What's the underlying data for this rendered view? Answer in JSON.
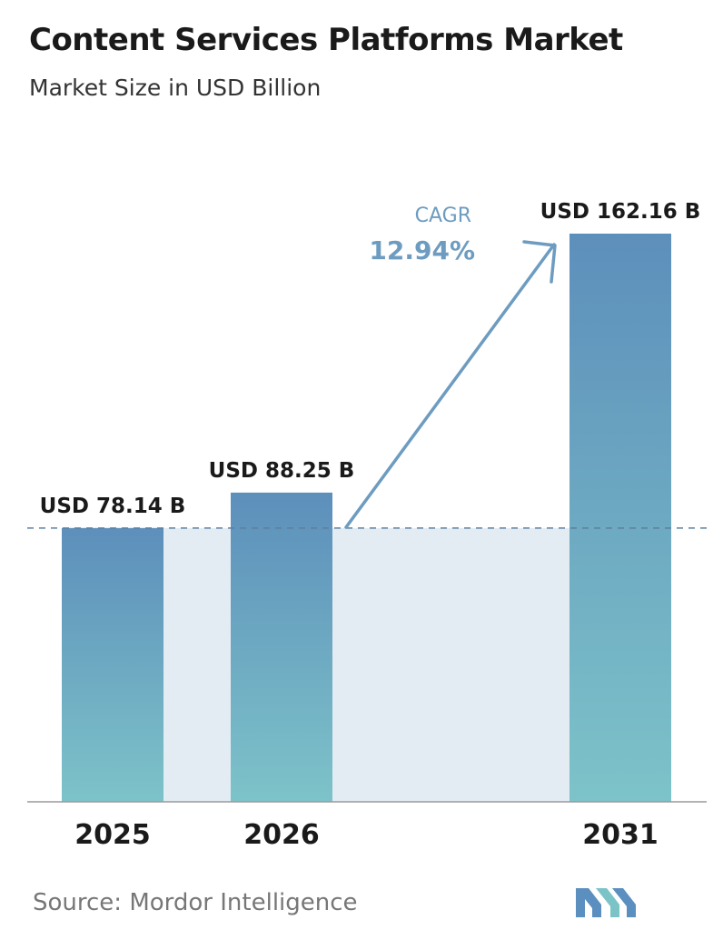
{
  "header": {
    "title": "Content Services Platforms Market",
    "subtitle": "Market Size in USD Billion"
  },
  "chart_data": {
    "type": "bar",
    "categories": [
      "2025",
      "2026",
      "2031"
    ],
    "values": [
      78.14,
      88.25,
      162.16
    ],
    "value_labels": [
      "USD 78.14 B",
      "USD 88.25 B",
      "USD 162.16 B"
    ],
    "ylim": [
      0,
      162.16
    ],
    "grid": false,
    "reference_line": 78.14,
    "annotation": {
      "label": "CAGR",
      "value": "12.94%"
    },
    "colors": {
      "bar_top": "#5d8fbb",
      "bar_bottom": "#7dc3c9",
      "band": "#e3ebf3",
      "annotation": "#6d9cc0"
    }
  },
  "footer": {
    "source": "Source:  Mordor Intelligence",
    "logo_icon": "mordor-intelligence-logo-icon"
  }
}
